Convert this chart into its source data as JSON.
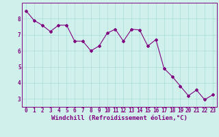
{
  "x": [
    0,
    1,
    2,
    3,
    4,
    5,
    6,
    7,
    8,
    9,
    10,
    11,
    12,
    13,
    14,
    15,
    16,
    17,
    18,
    19,
    20,
    21,
    22,
    23
  ],
  "y": [
    8.5,
    7.9,
    7.6,
    7.2,
    7.6,
    7.6,
    6.6,
    6.6,
    6.0,
    6.3,
    7.1,
    7.35,
    6.6,
    7.35,
    7.3,
    6.3,
    6.7,
    4.9,
    4.4,
    3.8,
    3.2,
    3.55,
    2.95,
    3.25
  ],
  "line_color": "#800080",
  "marker": "D",
  "markersize": 2.0,
  "linewidth": 0.8,
  "background_color": "#cff0eb",
  "grid_color": "#aaddda",
  "xlabel": "Windchill (Refroidissement éolien,°C)",
  "xlabel_fontsize": 6.5,
  "xlabel_color": "#800080",
  "xtick_labels": [
    "0",
    "1",
    "2",
    "3",
    "4",
    "5",
    "6",
    "7",
    "8",
    "9",
    "10",
    "11",
    "12",
    "13",
    "14",
    "15",
    "16",
    "17",
    "18",
    "19",
    "20",
    "21",
    "22",
    "23"
  ],
  "ytick_values": [
    3,
    4,
    5,
    6,
    7,
    8
  ],
  "ylim": [
    2.5,
    9.0
  ],
  "xlim": [
    -0.5,
    23.5
  ],
  "tick_fontsize": 5.5,
  "tick_color": "#800080",
  "spine_color": "#800080",
  "fig_width": 3.2,
  "fig_height": 2.0,
  "dpi": 100
}
